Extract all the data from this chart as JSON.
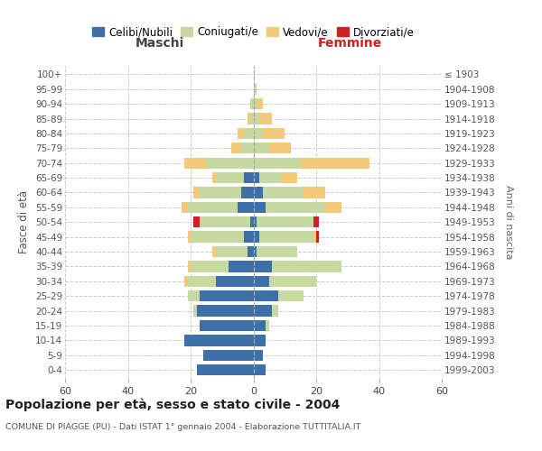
{
  "age_groups": [
    "0-4",
    "5-9",
    "10-14",
    "15-19",
    "20-24",
    "25-29",
    "30-34",
    "35-39",
    "40-44",
    "45-49",
    "50-54",
    "55-59",
    "60-64",
    "65-69",
    "70-74",
    "75-79",
    "80-84",
    "85-89",
    "90-94",
    "95-99",
    "100+"
  ],
  "birth_years": [
    "1999-2003",
    "1994-1998",
    "1989-1993",
    "1984-1988",
    "1979-1983",
    "1974-1978",
    "1969-1973",
    "1964-1968",
    "1959-1963",
    "1954-1958",
    "1949-1953",
    "1944-1948",
    "1939-1943",
    "1934-1938",
    "1929-1933",
    "1924-1928",
    "1919-1923",
    "1914-1918",
    "1909-1913",
    "1904-1908",
    "≤ 1903"
  ],
  "maschi": {
    "celibe": [
      18,
      16,
      22,
      17,
      18,
      17,
      12,
      8,
      2,
      3,
      1,
      5,
      4,
      3,
      0,
      0,
      0,
      0,
      0,
      0,
      0
    ],
    "coniugato": [
      0,
      0,
      0,
      0,
      1,
      4,
      9,
      12,
      10,
      17,
      16,
      16,
      13,
      9,
      15,
      4,
      3,
      1,
      1,
      0,
      0
    ],
    "vedovo": [
      0,
      0,
      0,
      0,
      0,
      0,
      1,
      1,
      1,
      1,
      0,
      2,
      2,
      1,
      7,
      3,
      2,
      1,
      0,
      0,
      0
    ],
    "divorziato": [
      0,
      0,
      0,
      0,
      0,
      0,
      0,
      0,
      0,
      0,
      2,
      0,
      0,
      0,
      0,
      0,
      0,
      0,
      0,
      0,
      0
    ]
  },
  "femmine": {
    "nubile": [
      4,
      3,
      4,
      4,
      6,
      8,
      5,
      6,
      1,
      2,
      1,
      4,
      3,
      2,
      0,
      0,
      0,
      0,
      0,
      0,
      0
    ],
    "coniugata": [
      0,
      0,
      0,
      1,
      2,
      8,
      15,
      22,
      13,
      17,
      18,
      19,
      13,
      7,
      15,
      5,
      3,
      2,
      1,
      1,
      0
    ],
    "vedova": [
      0,
      0,
      0,
      0,
      0,
      0,
      0,
      0,
      0,
      1,
      0,
      5,
      7,
      5,
      22,
      7,
      7,
      4,
      2,
      0,
      0
    ],
    "divorziata": [
      0,
      0,
      0,
      0,
      0,
      0,
      0,
      0,
      0,
      1,
      2,
      0,
      0,
      0,
      0,
      0,
      0,
      0,
      0,
      0,
      0
    ]
  },
  "colors": {
    "celibe": "#3d6fa8",
    "coniugato": "#c5d9a0",
    "vedovo": "#f5c97a",
    "divorziato": "#cc2222"
  },
  "xlim": 60,
  "xticks": [
    -60,
    -40,
    -20,
    0,
    20,
    40,
    60
  ],
  "xtick_labels": [
    "60",
    "40",
    "20",
    "0",
    "20",
    "40",
    "60"
  ],
  "title": "Popolazione per età, sesso e stato civile - 2004",
  "subtitle": "COMUNE DI PIAGGE (PU) - Dati ISTAT 1° gennaio 2004 - Elaborazione TUTTITALIA.IT",
  "ylabel_left": "Fasce di età",
  "ylabel_right": "Anni di nascita",
  "maschi_label": "Maschi",
  "femmine_label": "Femmine",
  "legend_labels": [
    "Celibi/Nubili",
    "Coniugati/e",
    "Vedovi/e",
    "Divorziati/e"
  ],
  "bg_color": "#ffffff",
  "grid_color": "#cccccc"
}
